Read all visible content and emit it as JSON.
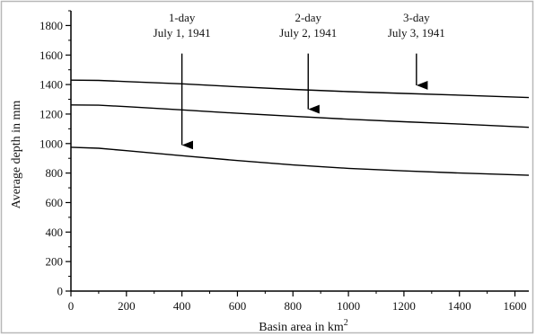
{
  "chart_data": {
    "type": "line",
    "title": "",
    "xlabel": "Basin area in km",
    "xlabel_sup": "2",
    "ylabel": "Average depth in mm",
    "xlim": [
      0,
      1650
    ],
    "ylim": [
      0,
      1900
    ],
    "xticks": [
      0,
      200,
      400,
      600,
      800,
      1000,
      1200,
      1400,
      1600
    ],
    "yticks": [
      0,
      200,
      400,
      600,
      800,
      1000,
      1200,
      1400,
      1600,
      1800
    ],
    "grid": false,
    "series": [
      {
        "x": [
          0,
          100,
          200,
          400,
          600,
          800,
          1000,
          1200,
          1400,
          1650
        ],
        "y": [
          1430,
          1428,
          1420,
          1405,
          1385,
          1367,
          1352,
          1340,
          1328,
          1312
        ]
      },
      {
        "x": [
          0,
          100,
          200,
          400,
          600,
          800,
          1000,
          1200,
          1400,
          1650
        ],
        "y": [
          1262,
          1260,
          1250,
          1228,
          1205,
          1185,
          1165,
          1148,
          1132,
          1110
        ]
      },
      {
        "x": [
          0,
          100,
          200,
          400,
          600,
          800,
          1000,
          1200,
          1400,
          1650
        ],
        "y": [
          975,
          968,
          952,
          918,
          885,
          855,
          832,
          815,
          800,
          785
        ]
      }
    ],
    "annotations": [
      {
        "line1": "1-day",
        "line2": "July 1, 1941",
        "x": 400,
        "y_from": 1610,
        "y_to": 935
      },
      {
        "line1": "2-day",
        "line2": "July 2, 1941",
        "x": 855,
        "y_from": 1610,
        "y_to": 1178
      },
      {
        "line1": "3-day",
        "line2": "July 3, 1941",
        "x": 1245,
        "y_from": 1610,
        "y_to": 1340
      }
    ],
    "colors": {
      "line": "#000000",
      "axis": "#000000",
      "frame": "#b8b8b8"
    }
  }
}
